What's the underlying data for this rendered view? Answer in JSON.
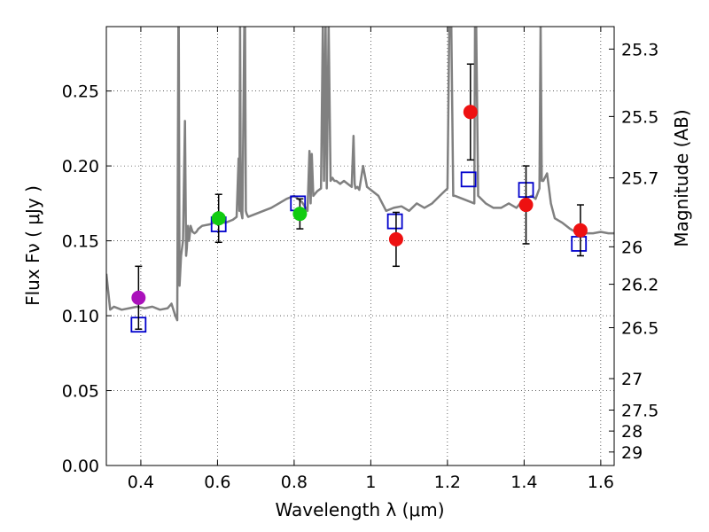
{
  "chart_data": {
    "type": "scatter",
    "xlabel": "Wavelength  λ (μm)",
    "ylabel": "Flux  Fν  ( μJy )",
    "y2label": "Magnitude (AB)",
    "xlim": [
      0.31,
      1.635
    ],
    "ylim": [
      0.0,
      0.293
    ],
    "grid": true,
    "legend": "none",
    "x_ticks": [
      0.4,
      0.6,
      0.8,
      1,
      1.2,
      1.4,
      1.6
    ],
    "y_ticks": [
      0.0,
      0.05,
      0.1,
      0.15,
      0.2,
      0.25
    ],
    "y_tick_labels": [
      "0.00",
      "0.05",
      "0.10",
      "0.15",
      "0.20",
      "0.25"
    ],
    "x_tick_labels": [
      "0.4",
      "0.6",
      "0.8",
      "1",
      "1.2",
      "1.4",
      "1.6"
    ],
    "mag_ticks": [
      {
        "label": "25.3",
        "flux": 0.278
      },
      {
        "label": "25.5",
        "flux": 0.233
      },
      {
        "label": "25.7",
        "flux": 0.192
      },
      {
        "label": "26",
        "flux": 0.146
      },
      {
        "label": "26.2",
        "flux": 0.121
      },
      {
        "label": "26.5",
        "flux": 0.092
      },
      {
        "label": "27",
        "flux": 0.058
      },
      {
        "label": "27.5",
        "flux": 0.037
      },
      {
        "label": "28",
        "flux": 0.023
      },
      {
        "label": "29",
        "flux": 0.009
      }
    ],
    "series": [
      {
        "kind": "model_spectrum",
        "color": "#808080",
        "x": [
          0.31,
          0.32,
          0.33,
          0.35,
          0.37,
          0.39,
          0.41,
          0.43,
          0.45,
          0.47,
          0.48,
          0.49,
          0.495,
          0.498,
          0.499,
          0.501,
          0.505,
          0.51,
          0.515,
          0.518,
          0.52,
          0.523,
          0.526,
          0.53,
          0.535,
          0.54,
          0.545,
          0.55,
          0.56,
          0.58,
          0.6,
          0.62,
          0.64,
          0.65,
          0.655,
          0.657,
          0.659,
          0.661,
          0.665,
          0.67,
          0.672,
          0.674,
          0.676,
          0.68,
          0.7,
          0.72,
          0.74,
          0.76,
          0.78,
          0.8,
          0.82,
          0.835,
          0.84,
          0.843,
          0.846,
          0.85,
          0.86,
          0.87,
          0.875,
          0.878,
          0.882,
          0.885,
          0.89,
          0.895,
          0.9,
          0.905,
          0.91,
          0.92,
          0.93,
          0.94,
          0.95,
          0.955,
          0.958,
          0.96,
          0.965,
          0.97,
          0.98,
          0.99,
          1.0,
          1.01,
          1.02,
          1.04,
          1.06,
          1.08,
          1.1,
          1.12,
          1.14,
          1.16,
          1.18,
          1.2,
          1.205,
          1.207,
          1.21,
          1.215,
          1.22,
          1.24,
          1.26,
          1.27,
          1.272,
          1.275,
          1.28,
          1.3,
          1.32,
          1.34,
          1.36,
          1.38,
          1.4,
          1.42,
          1.43,
          1.44,
          1.443,
          1.446,
          1.45,
          1.46,
          1.47,
          1.48,
          1.5,
          1.52,
          1.54,
          1.56,
          1.58,
          1.6,
          1.62,
          1.635
        ],
        "y": [
          0.128,
          0.104,
          0.106,
          0.104,
          0.105,
          0.106,
          0.105,
          0.106,
          0.104,
          0.105,
          0.108,
          0.1,
          0.097,
          0.295,
          0.295,
          0.12,
          0.14,
          0.15,
          0.23,
          0.14,
          0.145,
          0.16,
          0.15,
          0.16,
          0.156,
          0.155,
          0.156,
          0.158,
          0.16,
          0.161,
          0.163,
          0.162,
          0.164,
          0.166,
          0.205,
          0.17,
          0.295,
          0.17,
          0.165,
          0.295,
          0.295,
          0.17,
          0.168,
          0.166,
          0.168,
          0.17,
          0.172,
          0.175,
          0.178,
          0.18,
          0.176,
          0.17,
          0.21,
          0.175,
          0.208,
          0.18,
          0.183,
          0.185,
          0.295,
          0.19,
          0.295,
          0.185,
          0.295,
          0.19,
          0.192,
          0.19,
          0.19,
          0.188,
          0.19,
          0.188,
          0.186,
          0.22,
          0.188,
          0.185,
          0.186,
          0.184,
          0.2,
          0.186,
          0.184,
          0.182,
          0.18,
          0.17,
          0.172,
          0.173,
          0.17,
          0.175,
          0.172,
          0.175,
          0.18,
          0.185,
          0.295,
          0.295,
          0.295,
          0.18,
          0.18,
          0.178,
          0.176,
          0.175,
          0.295,
          0.295,
          0.18,
          0.175,
          0.172,
          0.172,
          0.175,
          0.172,
          0.178,
          0.18,
          0.178,
          0.185,
          0.295,
          0.19,
          0.19,
          0.195,
          0.175,
          0.165,
          0.162,
          0.158,
          0.155,
          0.155,
          0.155,
          0.156,
          0.155,
          0.155
        ]
      },
      {
        "kind": "model_photometry",
        "marker": "square",
        "color": "#0000cc",
        "x": [
          0.394,
          0.603,
          0.81,
          1.063,
          1.255,
          1.405,
          1.543
        ],
        "y": [
          0.094,
          0.161,
          0.175,
          0.163,
          0.191,
          0.184,
          0.148
        ]
      },
      {
        "kind": "observed",
        "marker": "circle",
        "points": [
          {
            "x": 0.394,
            "y": 0.112,
            "err": 0.021,
            "color": "#aa11bb"
          },
          {
            "x": 0.603,
            "y": 0.165,
            "err": 0.016,
            "color": "#11cc11"
          },
          {
            "x": 0.815,
            "y": 0.168,
            "err": 0.01,
            "color": "#11cc11"
          },
          {
            "x": 1.066,
            "y": 0.151,
            "err": 0.018,
            "color": "#ee1111"
          },
          {
            "x": 1.26,
            "y": 0.236,
            "err": 0.032,
            "color": "#ee1111"
          },
          {
            "x": 1.405,
            "y": 0.174,
            "err": 0.026,
            "color": "#ee1111"
          },
          {
            "x": 1.547,
            "y": 0.157,
            "err": 0.017,
            "color": "#ee1111"
          }
        ]
      }
    ]
  }
}
